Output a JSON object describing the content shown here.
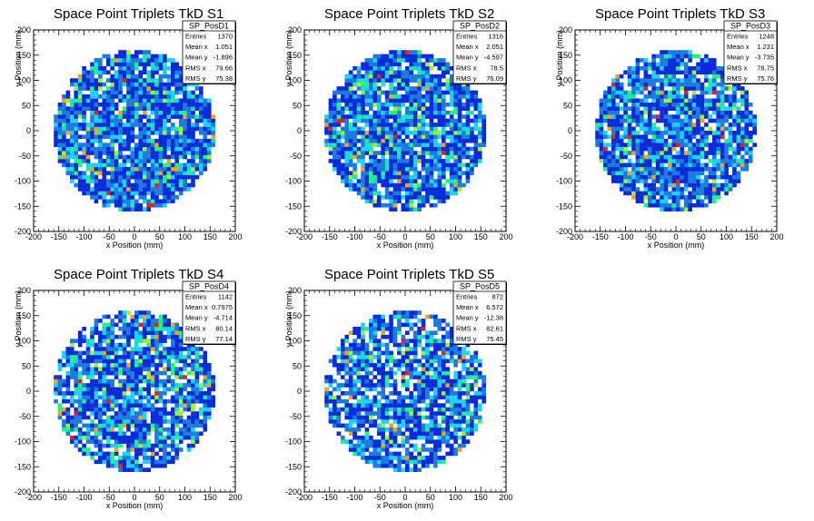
{
  "palette": [
    "#0a2bd9",
    "#1d7be0",
    "#19d4f2",
    "#1ff585",
    "#a4f02a",
    "#f5a21b",
    "#e5211a"
  ],
  "chart_data": [
    {
      "type": "heatmap",
      "title": "Space Point Triplets TkD S1",
      "xlabel": "x Position (mm)",
      "ylabel": "y Position (mm)",
      "xlim": [
        -200,
        200
      ],
      "ylim": [
        -200,
        200
      ],
      "xticks": [
        -200,
        -150,
        -100,
        -50,
        0,
        50,
        100,
        150,
        200
      ],
      "yticks": [
        -200,
        -150,
        -100,
        -50,
        0,
        50,
        100,
        150,
        200
      ],
      "bin_width_mm": 8,
      "occupied_radius_mm": 160,
      "stats": {
        "name": "SP_PosD1",
        "rows": [
          {
            "label": "Entries",
            "value": "1370"
          },
          {
            "label": "Mean x",
            "value": "1.051"
          },
          {
            "label": "Mean y",
            "value": "-1.896"
          },
          {
            "label": "RMS x",
            "value": "79.66"
          },
          {
            "label": "RMS y",
            "value": "75.38"
          }
        ]
      }
    },
    {
      "type": "heatmap",
      "title": "Space Point Triplets TkD S2",
      "xlabel": "x Position (mm)",
      "ylabel": "y Position (mm)",
      "xlim": [
        -200,
        200
      ],
      "ylim": [
        -200,
        200
      ],
      "xticks": [
        -200,
        -150,
        -100,
        -50,
        0,
        50,
        100,
        150,
        200
      ],
      "yticks": [
        -200,
        -150,
        -100,
        -50,
        0,
        50,
        100,
        150,
        200
      ],
      "bin_width_mm": 8,
      "occupied_radius_mm": 160,
      "stats": {
        "name": "SP_PosD2",
        "rows": [
          {
            "label": "Entries",
            "value": "1316"
          },
          {
            "label": "Mean x",
            "value": "2.051"
          },
          {
            "label": "Mean y",
            "value": "-4.597"
          },
          {
            "label": "RMS x",
            "value": "78.5"
          },
          {
            "label": "RMS y",
            "value": "76.09"
          }
        ]
      }
    },
    {
      "type": "heatmap",
      "title": "Space Point Triplets TkD S3",
      "xlabel": "x Position (mm)",
      "ylabel": "y Position (mm)",
      "xlim": [
        -200,
        200
      ],
      "ylim": [
        -200,
        200
      ],
      "xticks": [
        -200,
        -150,
        -100,
        -50,
        0,
        50,
        100,
        150,
        200
      ],
      "yticks": [
        -200,
        -150,
        -100,
        -50,
        0,
        50,
        100,
        150,
        200
      ],
      "bin_width_mm": 8,
      "occupied_radius_mm": 160,
      "stats": {
        "name": "SP_PosD3",
        "rows": [
          {
            "label": "Entries",
            "value": "1248"
          },
          {
            "label": "Mean x",
            "value": "1.231"
          },
          {
            "label": "Mean y",
            "value": "-3.735"
          },
          {
            "label": "RMS x",
            "value": "78.75"
          },
          {
            "label": "RMS y",
            "value": "75.76"
          }
        ]
      }
    },
    {
      "type": "heatmap",
      "title": "Space Point Triplets TkD S4",
      "xlabel": "x Position (mm)",
      "ylabel": "y Position (mm)",
      "xlim": [
        -200,
        200
      ],
      "ylim": [
        -200,
        200
      ],
      "xticks": [
        -200,
        -150,
        -100,
        -50,
        0,
        50,
        100,
        150,
        200
      ],
      "yticks": [
        -200,
        -150,
        -100,
        -50,
        0,
        50,
        100,
        150,
        200
      ],
      "bin_width_mm": 8,
      "occupied_radius_mm": 160,
      "stats": {
        "name": "SP_PosD4",
        "rows": [
          {
            "label": "Entries",
            "value": "1142"
          },
          {
            "label": "Mean x",
            "value": "0.7975"
          },
          {
            "label": "Mean y",
            "value": "-4.714"
          },
          {
            "label": "RMS x",
            "value": "80.14"
          },
          {
            "label": "RMS y",
            "value": "77.14"
          }
        ]
      }
    },
    {
      "type": "heatmap",
      "title": "Space Point Triplets TkD S5",
      "xlabel": "x Position (mm)",
      "ylabel": "y Position (mm)",
      "xlim": [
        -200,
        200
      ],
      "ylim": [
        -200,
        200
      ],
      "xticks": [
        -200,
        -150,
        -100,
        -50,
        0,
        50,
        100,
        150,
        200
      ],
      "yticks": [
        -200,
        -150,
        -100,
        -50,
        0,
        50,
        100,
        150,
        200
      ],
      "bin_width_mm": 8,
      "occupied_radius_mm": 160,
      "stats": {
        "name": "SP_PosD5",
        "rows": [
          {
            "label": "Entries",
            "value": "872"
          },
          {
            "label": "Mean x",
            "value": "6.572"
          },
          {
            "label": "Mean y",
            "value": "-12.38"
          },
          {
            "label": "RMS x",
            "value": "82.61"
          },
          {
            "label": "RMS y",
            "value": "75.45"
          }
        ]
      }
    }
  ]
}
